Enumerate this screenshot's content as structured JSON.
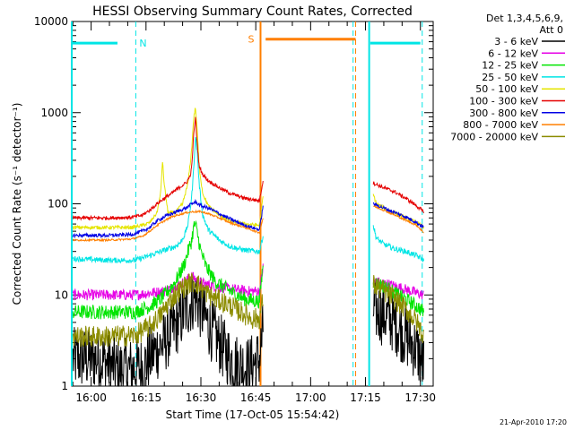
{
  "chart_data": {
    "type": "line",
    "title": "HESSI Observing Summary Count Rates, Corrected",
    "xlabel": "Start Time (17-Oct-05 15:54:42)",
    "ylabel": "Corrected Count Rate (s⁻¹ detector⁻¹)",
    "yscale": "log",
    "ylim": [
      1,
      10000
    ],
    "xlim_minutes_after_1600": [
      -5.3,
      33
    ],
    "x_ticks": [
      {
        "label": "16:00",
        "min": 0
      },
      {
        "label": "16:15",
        "min": 15
      },
      {
        "label": "16:30",
        "min": 30
      },
      {
        "label": "16:45",
        "min": 45
      },
      {
        "label": "17:00",
        "min": 60
      },
      {
        "label": "17:15",
        "min": 75
      },
      {
        "label": "17:30",
        "min": 90
      }
    ],
    "y_ticks": [
      {
        "label": "1",
        "value": 1
      },
      {
        "label": "10",
        "value": 10
      },
      {
        "label": "100",
        "value": 100
      },
      {
        "label": "1000",
        "value": 1000
      },
      {
        "label": "10000",
        "value": 10000
      }
    ],
    "legend_header": [
      "Det 1,3,4,5,6,9,",
      "Att 0"
    ],
    "footer": "21-Apr-2010 17:20",
    "flag_bars": [
      {
        "label": "N",
        "color": "#00e5e5",
        "y": 5800,
        "segments": [
          [
            -5.3,
            7.2
          ],
          [
            76.3,
            90
          ]
        ],
        "dashed_lines": [
          12.2,
          71.6,
          90.5
        ],
        "solid_lines": [
          -5.3,
          76.0
        ]
      },
      {
        "label": "S",
        "color": "#ff7f00",
        "y": 6400,
        "segments": [
          [
            47.7,
            72.3
          ]
        ],
        "dashed_lines": [
          72.3
        ],
        "solid_lines": [
          46.3
        ]
      }
    ],
    "series": [
      {
        "name": "3 - 6 keV",
        "color": "#000000",
        "points": [
          [
            -5,
            2
          ],
          [
            2,
            2
          ],
          [
            8,
            1.5
          ],
          [
            14,
            1.6
          ],
          [
            17,
            2.3
          ],
          [
            20,
            3
          ],
          [
            23,
            4.5
          ],
          [
            25,
            6
          ],
          [
            26.5,
            7.5
          ],
          [
            27.5,
            8.5
          ],
          [
            28.5,
            9.5
          ],
          [
            30,
            7
          ],
          [
            33,
            4
          ],
          [
            36,
            2.6
          ],
          [
            39,
            1.8
          ],
          [
            43,
            1.6
          ],
          [
            46,
            2
          ],
          [
            47,
            4
          ],
          [
            77,
            7
          ],
          [
            80,
            6
          ],
          [
            83,
            5
          ],
          [
            86,
            3.5
          ],
          [
            89,
            2.5
          ],
          [
            91,
            1.6
          ]
        ]
      },
      {
        "name": "6 - 12 keV",
        "color": "#e600e6",
        "points": [
          [
            -5,
            10
          ],
          [
            5,
            10
          ],
          [
            12,
            10
          ],
          [
            16,
            10.5
          ],
          [
            20,
            11
          ],
          [
            23,
            12.5
          ],
          [
            25,
            13.5
          ],
          [
            26.5,
            15
          ],
          [
            27.5,
            16
          ],
          [
            28.5,
            15
          ],
          [
            30,
            13.5
          ],
          [
            34,
            12.5
          ],
          [
            39,
            11.5
          ],
          [
            43,
            11
          ],
          [
            46,
            11
          ],
          [
            47,
            20
          ],
          [
            77,
            14
          ],
          [
            80,
            13.5
          ],
          [
            83,
            12.5
          ],
          [
            86,
            11.5
          ],
          [
            89,
            10.5
          ],
          [
            91,
            10
          ]
        ]
      },
      {
        "name": "12 - 25 keV",
        "color": "#00e500",
        "points": [
          [
            -5,
            6.5
          ],
          [
            5,
            6.5
          ],
          [
            12,
            6.5
          ],
          [
            16,
            7.5
          ],
          [
            19,
            9
          ],
          [
            21,
            11
          ],
          [
            23,
            14
          ],
          [
            24.5,
            18
          ],
          [
            25.5,
            22
          ],
          [
            26.5,
            30
          ],
          [
            27.5,
            40
          ],
          [
            28,
            55
          ],
          [
            28.5,
            60
          ],
          [
            29,
            48
          ],
          [
            30,
            30
          ],
          [
            31.5,
            20
          ],
          [
            34,
            14
          ],
          [
            38,
            11
          ],
          [
            42,
            9
          ],
          [
            46,
            8.5
          ],
          [
            47,
            22
          ],
          [
            77,
            14
          ],
          [
            80,
            12.5
          ],
          [
            83,
            10.5
          ],
          [
            86,
            9
          ],
          [
            89,
            7.5
          ],
          [
            91,
            6.5
          ]
        ]
      },
      {
        "name": "25 - 50 keV",
        "color": "#00e5e5",
        "points": [
          [
            -5,
            25
          ],
          [
            5,
            24
          ],
          [
            12,
            24
          ],
          [
            16,
            27
          ],
          [
            19,
            30
          ],
          [
            21,
            32
          ],
          [
            23,
            34
          ],
          [
            24.5,
            38
          ],
          [
            25.5,
            45
          ],
          [
            26.5,
            60
          ],
          [
            27.5,
            120
          ],
          [
            28,
            230
          ],
          [
            28.5,
            550
          ],
          [
            29,
            380
          ],
          [
            29.5,
            170
          ],
          [
            30.5,
            75
          ],
          [
            32,
            52
          ],
          [
            35,
            40
          ],
          [
            38,
            34
          ],
          [
            42,
            31
          ],
          [
            46,
            30
          ],
          [
            47,
            45
          ],
          [
            77,
            60
          ],
          [
            78,
            42
          ],
          [
            80,
            36
          ],
          [
            83,
            32
          ],
          [
            86,
            30
          ],
          [
            89,
            27
          ],
          [
            91,
            24
          ]
        ]
      },
      {
        "name": "50 - 100 keV",
        "color": "#e5e500",
        "points": [
          [
            -5,
            55
          ],
          [
            5,
            55
          ],
          [
            11,
            55
          ],
          [
            14,
            58
          ],
          [
            16,
            62
          ],
          [
            18,
            80
          ],
          [
            19,
            130
          ],
          [
            19.5,
            300
          ],
          [
            20,
            160
          ],
          [
            21,
            80
          ],
          [
            23,
            80
          ],
          [
            25,
            100
          ],
          [
            26.5,
            170
          ],
          [
            27.5,
            400
          ],
          [
            28,
            850
          ],
          [
            28.5,
            1150
          ],
          [
            29,
            650
          ],
          [
            29.5,
            260
          ],
          [
            30.5,
            130
          ],
          [
            32,
            95
          ],
          [
            35,
            75
          ],
          [
            38,
            65
          ],
          [
            42,
            60
          ],
          [
            46,
            58
          ],
          [
            47,
            120
          ],
          [
            77,
            130
          ],
          [
            78,
            100
          ],
          [
            80,
            90
          ],
          [
            83,
            80
          ],
          [
            86,
            70
          ],
          [
            89,
            62
          ],
          [
            91,
            55
          ]
        ]
      },
      {
        "name": "100 - 300 keV",
        "color": "#e50000",
        "points": [
          [
            -5,
            70
          ],
          [
            5,
            70
          ],
          [
            11,
            71
          ],
          [
            14,
            75
          ],
          [
            16,
            85
          ],
          [
            18,
            100
          ],
          [
            20,
            115
          ],
          [
            22,
            130
          ],
          [
            24,
            150
          ],
          [
            26,
            170
          ],
          [
            27,
            200
          ],
          [
            27.5,
            250
          ],
          [
            28,
            550
          ],
          [
            28.5,
            900
          ],
          [
            29,
            450
          ],
          [
            29.5,
            260
          ],
          [
            30.5,
            210
          ],
          [
            32,
            180
          ],
          [
            35,
            150
          ],
          [
            38,
            130
          ],
          [
            42,
            115
          ],
          [
            46,
            108
          ],
          [
            47,
            180
          ],
          [
            77,
            170
          ],
          [
            80,
            150
          ],
          [
            83,
            135
          ],
          [
            86,
            115
          ],
          [
            89,
            95
          ],
          [
            91,
            80
          ]
        ]
      },
      {
        "name": "300 - 800 keV",
        "color": "#0000e5",
        "points": [
          [
            -5,
            45
          ],
          [
            5,
            45
          ],
          [
            11,
            46
          ],
          [
            14,
            50
          ],
          [
            16,
            55
          ],
          [
            18,
            65
          ],
          [
            20,
            72
          ],
          [
            22,
            78
          ],
          [
            24,
            84
          ],
          [
            26,
            90
          ],
          [
            27.5,
            100
          ],
          [
            28.5,
            105
          ],
          [
            30,
            95
          ],
          [
            32,
            90
          ],
          [
            35,
            78
          ],
          [
            38,
            68
          ],
          [
            42,
            58
          ],
          [
            46,
            52
          ],
          [
            47,
            95
          ],
          [
            77,
            100
          ],
          [
            80,
            90
          ],
          [
            83,
            80
          ],
          [
            86,
            72
          ],
          [
            89,
            62
          ],
          [
            91,
            55
          ]
        ]
      },
      {
        "name": "800 - 7000 keV",
        "color": "#ff7f00",
        "points": [
          [
            -5,
            40
          ],
          [
            5,
            40
          ],
          [
            11,
            41
          ],
          [
            14,
            44
          ],
          [
            16,
            50
          ],
          [
            18,
            58
          ],
          [
            20,
            65
          ],
          [
            22,
            72
          ],
          [
            24,
            76
          ],
          [
            26,
            80
          ],
          [
            28,
            82
          ],
          [
            30,
            82
          ],
          [
            32,
            78
          ],
          [
            35,
            70
          ],
          [
            38,
            62
          ],
          [
            42,
            55
          ],
          [
            46,
            48
          ],
          [
            47,
            70
          ],
          [
            77,
            95
          ],
          [
            80,
            85
          ],
          [
            83,
            75
          ],
          [
            86,
            66
          ],
          [
            89,
            58
          ],
          [
            91,
            48
          ]
        ]
      },
      {
        "name": "7000 - 20000 keV",
        "color": "#8c8c00",
        "points": [
          [
            -5,
            3.5
          ],
          [
            5,
            3.5
          ],
          [
            12,
            3.6
          ],
          [
            16,
            4.5
          ],
          [
            19,
            6
          ],
          [
            21,
            8
          ],
          [
            23,
            10
          ],
          [
            25,
            12
          ],
          [
            27,
            13.5
          ],
          [
            28.5,
            14
          ],
          [
            30,
            12
          ],
          [
            33,
            9.5
          ],
          [
            37,
            8
          ],
          [
            41,
            6.5
          ],
          [
            44,
            5.5
          ],
          [
            46,
            5.5
          ],
          [
            47,
            9
          ],
          [
            77,
            13
          ],
          [
            80,
            11
          ],
          [
            83,
            9
          ],
          [
            86,
            7
          ],
          [
            89,
            5
          ],
          [
            91,
            3.5
          ]
        ]
      }
    ]
  }
}
